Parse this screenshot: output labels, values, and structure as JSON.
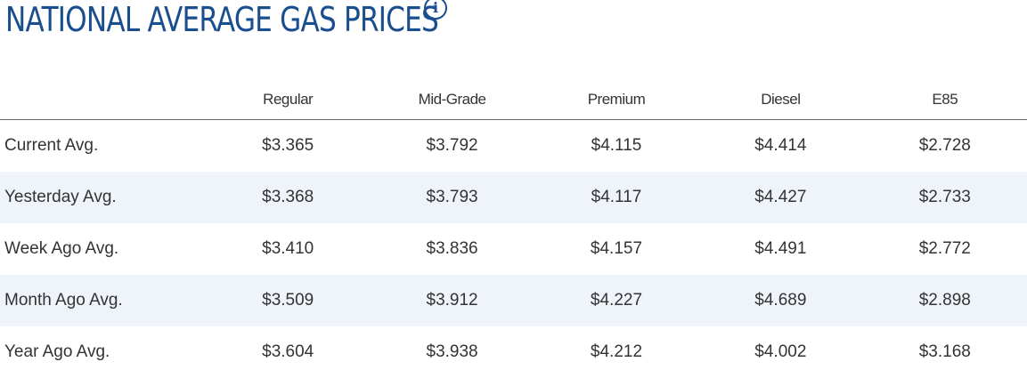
{
  "header": {
    "title": "NATIONAL AVERAGE GAS PRICES",
    "info_icon": "info-icon"
  },
  "table": {
    "columns": [
      "",
      "Regular",
      "Mid-Grade",
      "Premium",
      "Diesel",
      "E85"
    ],
    "rows": [
      {
        "label": "Current Avg.",
        "values": [
          "$3.365",
          "$3.792",
          "$4.115",
          "$4.414",
          "$2.728"
        ]
      },
      {
        "label": "Yesterday Avg.",
        "values": [
          "$3.368",
          "$3.793",
          "$4.117",
          "$4.427",
          "$2.733"
        ]
      },
      {
        "label": "Week Ago Avg.",
        "values": [
          "$3.410",
          "$3.836",
          "$4.157",
          "$4.491",
          "$2.772"
        ]
      },
      {
        "label": "Month Ago Avg.",
        "values": [
          "$3.509",
          "$3.912",
          "$4.227",
          "$4.689",
          "$2.898"
        ]
      },
      {
        "label": "Year Ago Avg.",
        "values": [
          "$3.604",
          "$3.938",
          "$4.212",
          "$4.002",
          "$3.168"
        ]
      }
    ]
  },
  "colors": {
    "title": "#1a4f8f",
    "text": "#333333",
    "row_shade": "#eef4fa",
    "header_rule": "#6a6a6a"
  }
}
